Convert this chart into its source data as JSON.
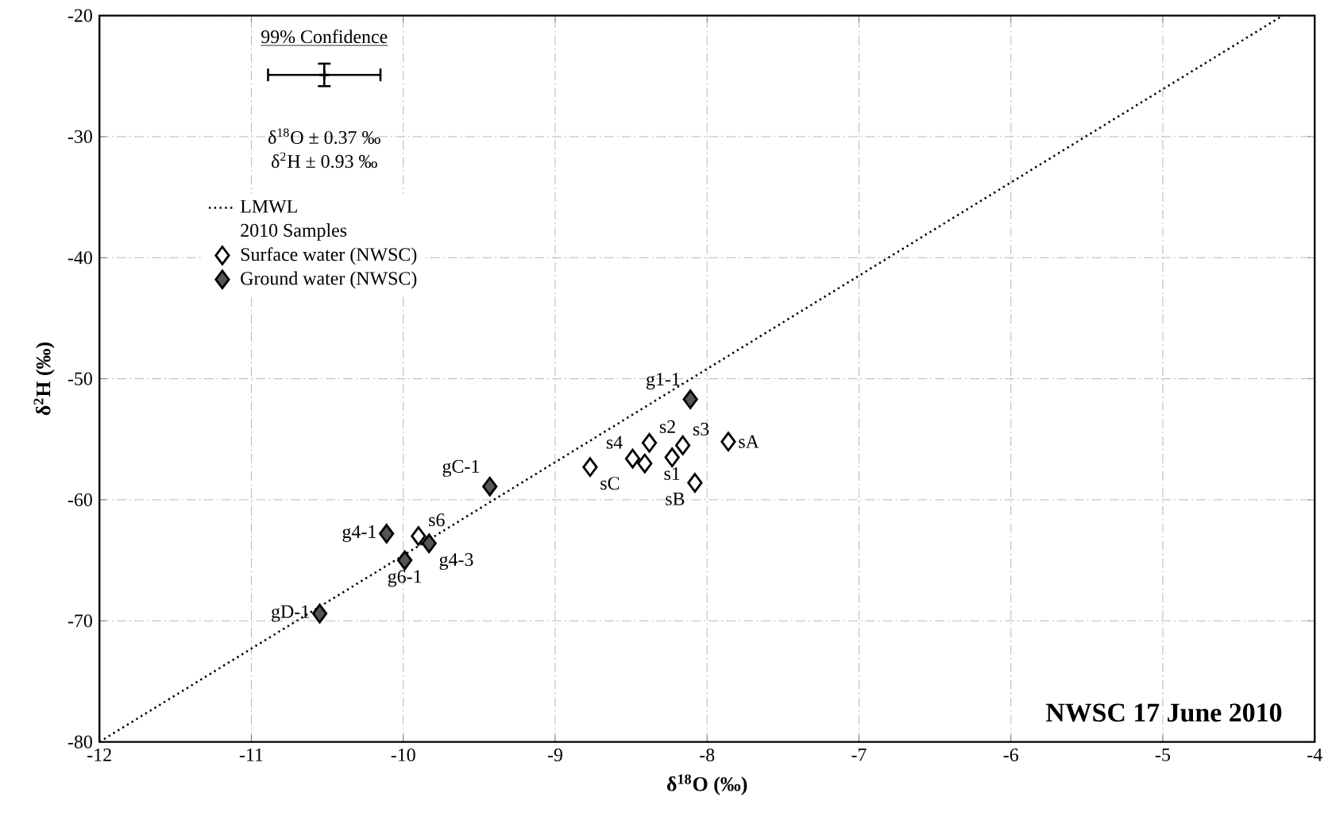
{
  "chart_data": {
    "type": "scatter",
    "xlabel": "δ$^{18}$O (‰)",
    "ylabel": "δ$^{2}$H (‰)",
    "xlim": [
      -12,
      -4
    ],
    "ylim": [
      -80,
      -20
    ],
    "xticks": [
      -12,
      -11,
      -10,
      -9,
      -8,
      -7,
      -6,
      -5,
      -4
    ],
    "yticks": [
      -80,
      -70,
      -60,
      -50,
      -40,
      -30,
      -20
    ],
    "grid": true,
    "legend": "top left",
    "legend_title": "2010 Samples",
    "marker": "diamond",
    "series": [
      {
        "name": "LMWL",
        "type": "line",
        "line_style": "dotted",
        "marker": "none",
        "color": "#000000",
        "x": [
          -12,
          -4.21
        ],
        "values": [
          -80,
          -20
        ]
      },
      {
        "name": "Surface water (NWSC)",
        "color": "#ffffff",
        "x": [
          -8.38,
          -8.16,
          -8.23,
          -8.49,
          -8.41,
          -8.77,
          -8.08,
          -7.86,
          -9.9
        ],
        "values": [
          -55.3,
          -55.5,
          -56.5,
          -56.6,
          -57.0,
          -57.3,
          -58.6,
          -55.2,
          -63.0
        ]
      },
      {
        "name": "Ground water (NWSC)",
        "color": "#555555",
        "x": [
          -8.11,
          -9.43,
          -10.11,
          -9.83,
          -9.99,
          -10.55
        ],
        "values": [
          -51.7,
          -58.9,
          -62.8,
          -63.6,
          -65.0,
          -69.4
        ]
      },
      {
        "color": "#000000",
        "marker": "cross",
        "x": [
          -10.52
        ],
        "values": [
          -24.9
        ],
        "errors": [
          0.93
        ],
        "xerrors": [
          0.37
        ]
      }
    ],
    "annotations": [
      "99% Confidence",
      "δ$^{18}$O ± 0.37 ‰",
      "δ$^{2}$H  ± 0.93 ‰",
      "NWSC 17 June 2010",
      {
        "text": "g1-1",
        "x": -8.11,
        "y": -51.7
      },
      {
        "text": "s2",
        "x": -8.38,
        "y": -55.3
      },
      {
        "text": "s3",
        "x": -8.16,
        "y": -55.5
      },
      {
        "text": "s4",
        "x": -8.49,
        "y": -56.6
      },
      {
        "text": "s1",
        "x": -8.23,
        "y": -56.5
      },
      {
        "text": "sC",
        "x": -8.77,
        "y": -57.3
      },
      {
        "text": "sB",
        "x": -8.08,
        "y": -58.6
      },
      {
        "text": "sA",
        "x": -7.86,
        "y": -55.2
      },
      {
        "text": "gC-1",
        "x": -9.43,
        "y": -58.9
      },
      {
        "text": "g4-1",
        "x": -10.11,
        "y": -62.8
      },
      {
        "text": "s6",
        "x": -9.9,
        "y": -63.0
      },
      {
        "text": "g4-3",
        "x": -9.83,
        "y": -63.6
      },
      {
        "text": "g6-1",
        "x": -9.99,
        "y": -65.0
      },
      {
        "text": "gD-1",
        "x": -10.55,
        "y": -69.4
      }
    ]
  }
}
